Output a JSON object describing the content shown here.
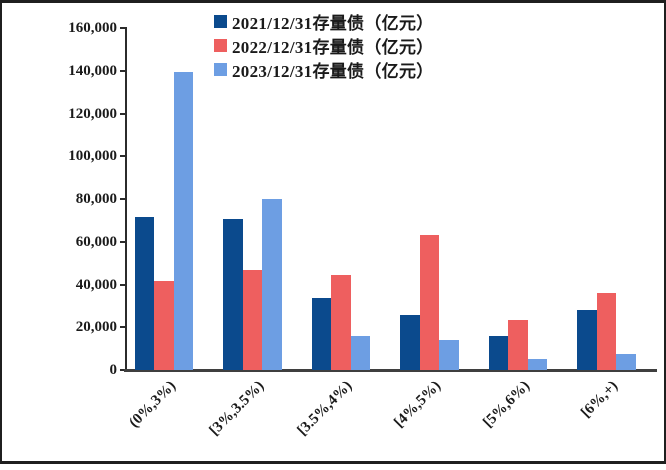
{
  "chart_data": {
    "type": "bar",
    "title": "",
    "xlabel": "",
    "ylabel": "",
    "categories": [
      "(0%,3%)",
      "[3%,3.5%)",
      "[3.5%,4%)",
      "[4%,5%)",
      "[5%,6%)",
      "[6%,+)"
    ],
    "series": [
      {
        "name": "2021/12/31存量债（亿元）",
        "color": "#0b4a8d",
        "values": [
          71500,
          70500,
          33500,
          25500,
          15800,
          28000
        ]
      },
      {
        "name": "2022/12/31存量债（亿元）",
        "color": "#ee5f5f",
        "values": [
          41500,
          47000,
          44500,
          63000,
          23500,
          36000
        ]
      },
      {
        "name": "2023/12/31存量债（亿元）",
        "color": "#6d9ee3",
        "values": [
          139500,
          80000,
          16000,
          14000,
          5000,
          7500
        ]
      }
    ],
    "ylim": [
      0,
      160000
    ],
    "yticks": [
      0,
      20000,
      40000,
      60000,
      80000,
      100000,
      120000,
      140000,
      160000
    ],
    "grid": false,
    "legend_position": "top-center"
  },
  "frame": {
    "border_color": "#1f1f1f",
    "axis_color": "#3f3f3f"
  }
}
